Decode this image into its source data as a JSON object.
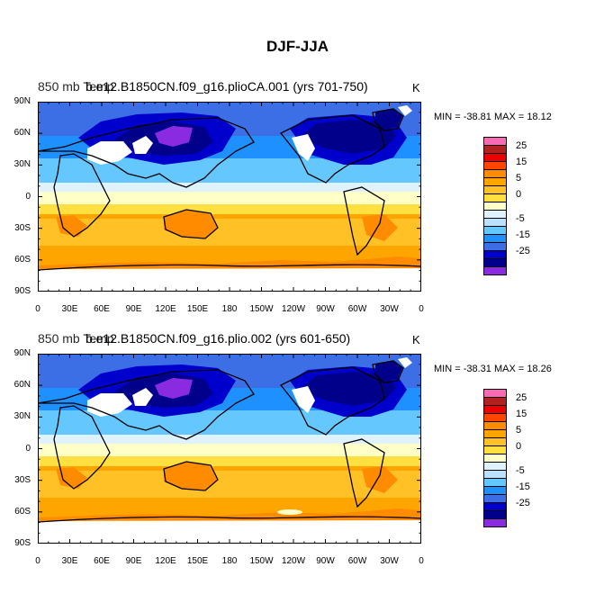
{
  "title": "DJF-JJA",
  "panels": [
    {
      "case": "850 mb Temp",
      "overlap": "b.e12.B1850CN.f09_g16.plioCA.001 (yrs 701-750)",
      "units": "K",
      "minmax": "MIN = -38.81  MAX =  18.12"
    },
    {
      "case": "850 mb Temp",
      "overlap": "b.e12.B1850CN.f09_g16.plio.002 (yrs 601-650)",
      "units": "K",
      "minmax": "MIN = -38.31  MAX =  18.26"
    }
  ],
  "axes": {
    "lat_labels": [
      "90N",
      "60N",
      "30N",
      "0",
      "30S",
      "60S",
      "90S"
    ],
    "lon_labels": [
      "0",
      "30E",
      "60E",
      "90E",
      "120E",
      "150E",
      "180",
      "150W",
      "120W",
      "90W",
      "60W",
      "30W",
      "0"
    ]
  },
  "colorbar": {
    "colors": [
      "#ff69b4",
      "#b22222",
      "#ee0000",
      "#ff4500",
      "#ff8c00",
      "#ffa500",
      "#ffc125",
      "#ffe040",
      "#ffffc8",
      "#e0f2ff",
      "#b8e2ff",
      "#64c8ff",
      "#1e90ff",
      "#3c6ee6",
      "#0000cd",
      "#00008b",
      "#8a2be2"
    ],
    "labels": [
      "25",
      "15",
      "5",
      "0",
      "-5",
      "-15",
      "-25"
    ],
    "label_box_index": [
      1,
      3,
      5,
      7,
      10,
      12,
      14
    ]
  }
}
